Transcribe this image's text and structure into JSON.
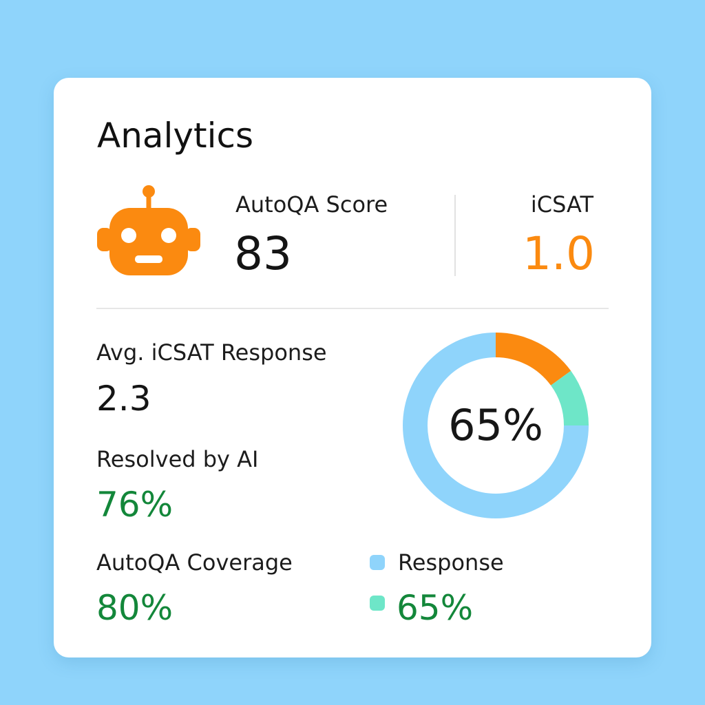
{
  "colors": {
    "background": "#8fd4fb",
    "accent_orange": "#fb8a10",
    "success_green": "#13873a",
    "donut_blue": "#8fd4fb",
    "donut_teal": "#6ee6c8"
  },
  "card": {
    "title": "Analytics",
    "robot_icon": "robot-icon"
  },
  "autoqa_score": {
    "label": "AutoQA Score",
    "value": "83"
  },
  "icsat": {
    "label": "iCSAT",
    "value": "1.0"
  },
  "avg_icsat_response": {
    "label": "Avg. iCSAT Response",
    "value": "2.3"
  },
  "resolved_by_ai": {
    "label": "Resolved by AI",
    "value": "76%"
  },
  "autoqa_coverage": {
    "label": "AutoQA Coverage",
    "value": "80%"
  },
  "donut": {
    "center_label": "65%",
    "segments": [
      {
        "name": "orange",
        "color": "#fb8a10",
        "fraction": 0.15
      },
      {
        "name": "teal",
        "color": "#6ee6c8",
        "fraction": 0.1
      },
      {
        "name": "blue",
        "color": "#8fd4fb",
        "fraction": 0.75
      }
    ]
  },
  "legend": [
    {
      "label": "Response",
      "color": "#8fd4fb"
    },
    {
      "label": "65%",
      "color": "#6ee6c8"
    }
  ]
}
